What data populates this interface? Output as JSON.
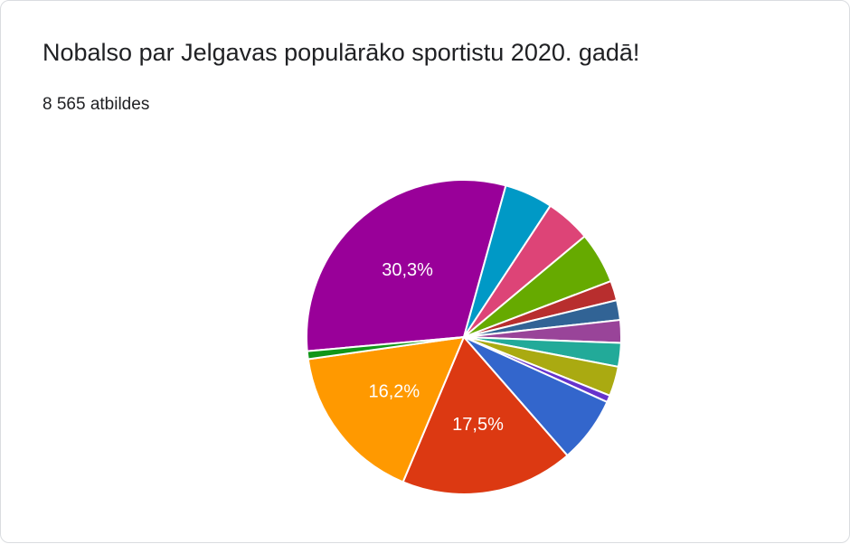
{
  "header": {
    "title": "Nobalso par Jelgavas populārāko sportistu 2020. gadā!",
    "responses": "8 565 atbildes"
  },
  "chart_data": {
    "type": "pie",
    "start_angle_deg": 0,
    "direction": "clockwise",
    "slices": [
      {
        "value": 30.3,
        "color": "#990099",
        "label": "30,3%"
      },
      {
        "value": 4.9,
        "color": "#0099c6",
        "label": ""
      },
      {
        "value": 4.6,
        "color": "#dd4477",
        "label": ""
      },
      {
        "value": 5.2,
        "color": "#66aa00",
        "label": ""
      },
      {
        "value": 2.0,
        "color": "#b82e2e",
        "label": ""
      },
      {
        "value": 2.0,
        "color": "#316395",
        "label": ""
      },
      {
        "value": 2.3,
        "color": "#994499",
        "label": ""
      },
      {
        "value": 2.4,
        "color": "#22aa99",
        "label": ""
      },
      {
        "value": 3.0,
        "color": "#aaaa11",
        "label": ""
      },
      {
        "value": 0.7,
        "color": "#6633cc",
        "label": ""
      },
      {
        "value": 6.7,
        "color": "#3366cc",
        "label": ""
      },
      {
        "value": 17.5,
        "color": "#dc3912",
        "label": "17,5%"
      },
      {
        "value": 16.2,
        "color": "#ff9900",
        "label": "16,2%"
      },
      {
        "value": 0.8,
        "color": "#109618",
        "label": ""
      }
    ]
  }
}
